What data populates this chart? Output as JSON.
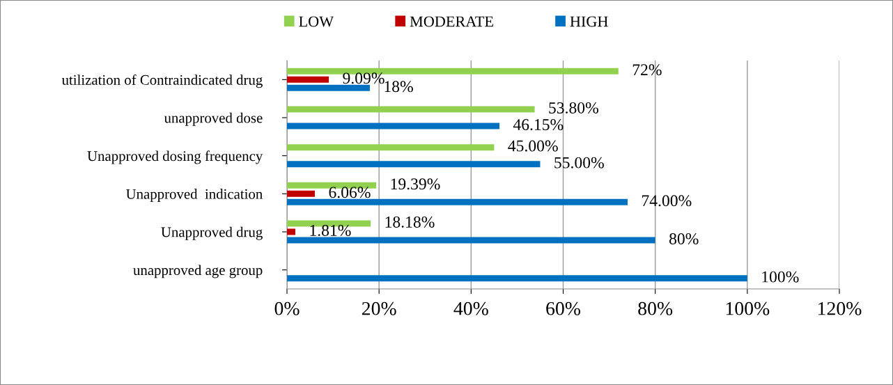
{
  "chart_data": {
    "type": "bar",
    "orientation": "horizontal",
    "categories": [
      "utilization of Contraindicated drug",
      "unapproved dose",
      "Unapproved dosing frequency",
      "Unapproved  indication",
      "Unapproved drug",
      "unapproved age group"
    ],
    "series": [
      {
        "name": "LOW",
        "color": "#92d050",
        "values": [
          72,
          53.8,
          45,
          19.39,
          18.18,
          null
        ],
        "value_labels": [
          "72%",
          "53.80%",
          "45.00%",
          "19.39%",
          "18.18%",
          null
        ]
      },
      {
        "name": "MODERATE",
        "color": "#c00000",
        "values": [
          9.09,
          null,
          null,
          6.06,
          1.81,
          null
        ],
        "value_labels": [
          "9.09%",
          null,
          null,
          "6.06%",
          "1.81%",
          null
        ]
      },
      {
        "name": "HIGH",
        "color": "#0070c0",
        "values": [
          18,
          46.15,
          55,
          74,
          80,
          100
        ],
        "value_labels": [
          "18%",
          "46.15%",
          "55.00%",
          "74.00%",
          "80%",
          "100%"
        ]
      }
    ],
    "xlim": [
      0,
      120
    ],
    "xticks": [
      {
        "value": 0,
        "label": "0%"
      },
      {
        "value": 20,
        "label": "20%"
      },
      {
        "value": 40,
        "label": "40%"
      },
      {
        "value": 60,
        "label": "60%"
      },
      {
        "value": 80,
        "label": "80%"
      },
      {
        "value": 100,
        "label": "100%"
      },
      {
        "value": 120,
        "label": "120%"
      }
    ],
    "grid": "x",
    "legend": "top"
  }
}
